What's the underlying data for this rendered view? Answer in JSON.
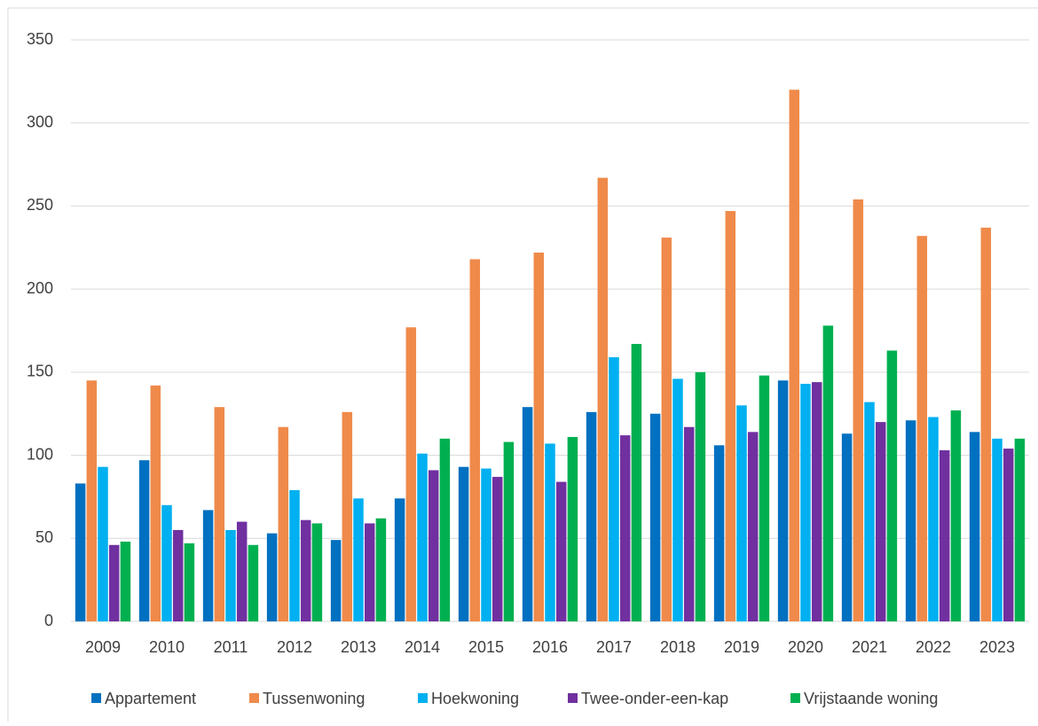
{
  "chart_data": {
    "type": "bar",
    "categories": [
      "2009",
      "2010",
      "2011",
      "2012",
      "2013",
      "2014",
      "2015",
      "2016",
      "2017",
      "2018",
      "2019",
      "2020",
      "2021",
      "2022",
      "2023"
    ],
    "series": [
      {
        "name": "Appartement",
        "color": "#0070c0",
        "values": [
          83,
          97,
          67,
          53,
          49,
          74,
          93,
          129,
          126,
          125,
          106,
          145,
          113,
          121,
          114
        ]
      },
      {
        "name": "Tussenwoning",
        "color": "#ef8a4a",
        "values": [
          145,
          142,
          129,
          117,
          126,
          177,
          218,
          222,
          267,
          231,
          247,
          320,
          254,
          232,
          237
        ]
      },
      {
        "name": "Hoekwoning",
        "color": "#00b0f0",
        "values": [
          93,
          70,
          55,
          79,
          74,
          101,
          92,
          107,
          159,
          146,
          130,
          143,
          132,
          123,
          110
        ]
      },
      {
        "name": "Twee-onder-een-kap",
        "color": "#7030a0",
        "values": [
          46,
          55,
          60,
          61,
          59,
          91,
          87,
          84,
          112,
          117,
          114,
          144,
          120,
          103,
          104
        ]
      },
      {
        "name": "Vrijstaande woning",
        "color": "#00b050",
        "values": [
          48,
          47,
          46,
          59,
          62,
          110,
          108,
          111,
          167,
          150,
          148,
          178,
          163,
          127,
          110
        ]
      }
    ],
    "ylim": [
      0,
      350
    ],
    "yticks": [
      0,
      50,
      100,
      150,
      200,
      250,
      300,
      350
    ],
    "grid": true
  }
}
